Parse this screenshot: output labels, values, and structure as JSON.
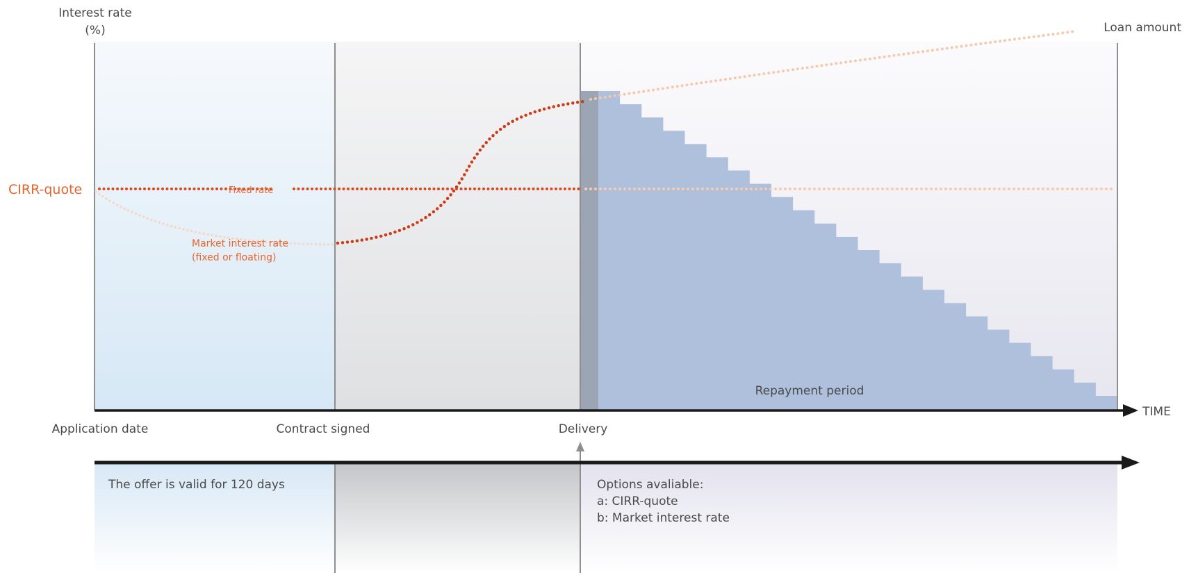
{
  "axis": {
    "y_label_line1": "Interest rate",
    "y_label_line2": "(%)",
    "y_right_label": "Loan amount",
    "x_label": "TIME"
  },
  "rate_label": "CIRR-quote",
  "series": {
    "fixed_rate": "Fixed rate",
    "market_rate_line1": "Market interest rate",
    "market_rate_line2": "(fixed or floating)"
  },
  "repayment_label": "Repayment period",
  "milestones": {
    "application": "Application date",
    "contract": "Contract signed",
    "delivery": "Delivery"
  },
  "offer_text": "The offer is valid for 120 days",
  "options": {
    "title": "Options avaliable:",
    "a": "a: CIRR-quote",
    "b": "b: Market interest rate"
  },
  "colors": {
    "fixed": "#d9481c",
    "market": "#cc3a16",
    "repayment": "#afc0dc",
    "delivery_bar": "#9ba5b3",
    "label_orange": "#e8642d"
  },
  "repayment_steps": 24
}
